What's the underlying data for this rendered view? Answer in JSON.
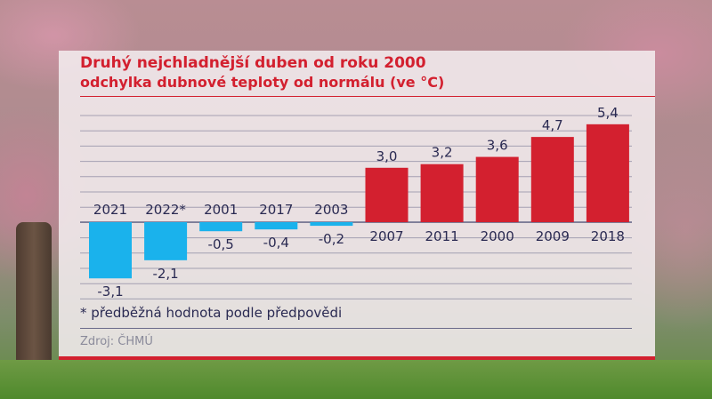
{
  "header": {
    "title": "Druhý nejchladnější duben od roku 2000",
    "subtitle": "odchylka dubnové teploty od normálu (ve °C)"
  },
  "footer": {
    "note": "* předběžná hodnota podle předpovědi",
    "source": "Zdroj: ČHMÚ"
  },
  "colors": {
    "negative": "#1ab2ec",
    "positive": "#d3202f",
    "text": "#2a2a52",
    "grid": "#6b6b8a"
  },
  "chart_data": {
    "type": "bar",
    "categories": [
      "2021",
      "2022*",
      "2001",
      "2017",
      "2003",
      "2007",
      "2011",
      "2000",
      "2009",
      "2018"
    ],
    "values": [
      -3.1,
      -2.1,
      -0.5,
      -0.4,
      -0.2,
      3.0,
      3.2,
      3.6,
      4.7,
      5.4
    ],
    "value_labels": [
      "-3,1",
      "-2,1",
      "-0,5",
      "-0,4",
      "-0,2",
      "3,0",
      "3,2",
      "3,6",
      "4,7",
      "5,4"
    ],
    "title": "Druhý nejchladnější duben od roku 2000",
    "subtitle": "odchylka dubnové teploty od normálu (ve °C)",
    "ylim": [
      -3.5,
      6
    ],
    "grid": true
  }
}
